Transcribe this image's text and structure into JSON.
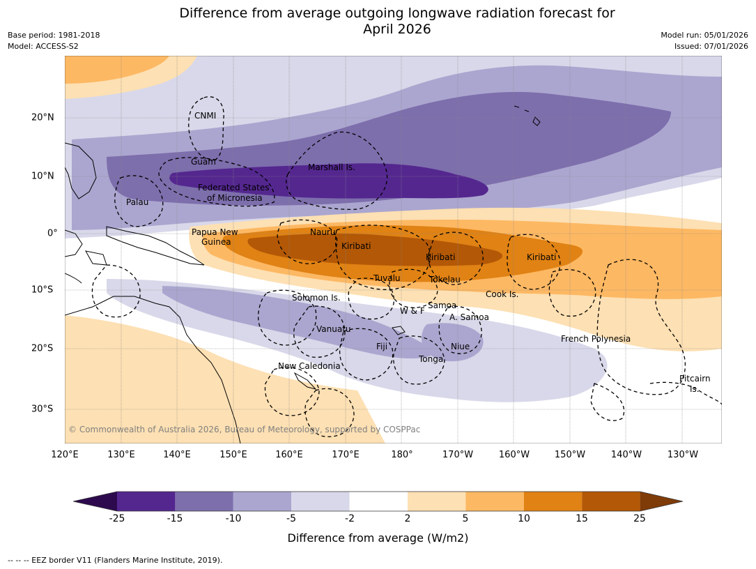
{
  "title": {
    "line1": "Difference from average outgoing longwave radiation forecast for",
    "line2": "April 2026"
  },
  "meta": {
    "base_period": "Base period: 1981-2018",
    "model": "Model: ACCESS-S2",
    "model_run": "Model run: 05/01/2026",
    "issued": "Issued: 07/01/2026"
  },
  "longitude_labels": [
    "120°E",
    "130°E",
    "140°E",
    "150°E",
    "160°E",
    "170°E",
    "180°",
    "170°W",
    "160°W",
    "150°W",
    "140°W",
    "130°W"
  ],
  "latitude_labels": [
    "20°N",
    "10°N",
    "0°",
    "10°S",
    "20°S",
    "30°S"
  ],
  "places": {
    "cnmi": "CNMI",
    "guam": "Guam",
    "marshall": "Marshall Is.",
    "fsm_line1": "Federated States",
    "fsm_line2": "of Micronesia",
    "palau": "Palau",
    "png_line1": "Papua New",
    "png_line2": "Guinea",
    "nauru": "Nauru",
    "kiribati_w": "Kiribati",
    "kiribati_c": "Kiribati",
    "kiribati_e": "Kiribati",
    "tuvalu": "Tuvalu",
    "tokelau": "Tokelau",
    "cook": "Cook Is.",
    "solomon": "Solomon Is.",
    "wf": "W & F",
    "samoa": "Samoa",
    "asamoa": "A. Samoa",
    "vanuatu": "Vanuatu",
    "fiji": "Fiji",
    "niue": "Niue",
    "tonga": "Tonga",
    "french_polynesia": "French Polynesia",
    "new_caledonia": "New Caledonia",
    "pitcairn_line1": "Pitcairn",
    "pitcairn_line2": "Is."
  },
  "copyright": "© Commonwealth of Australia 2026, Bureau of Meteorology, supported by COSPPac",
  "colorbar": {
    "ticks": [
      "-25",
      "-15",
      "-10",
      "-5",
      "-2",
      "2",
      "5",
      "10",
      "15",
      "25"
    ],
    "colors": [
      "#2d0a4e",
      "#54278f",
      "#7d6eac",
      "#aba6cf",
      "#d8d8ea",
      "#ffffff",
      "#fde0b3",
      "#fdb863",
      "#e08214",
      "#b35806",
      "#7f3b08"
    ],
    "title": "Difference from average (W/m2)"
  },
  "footnote": "--  --  -- EEZ border V11 (Flanders Marine Institute, 2019)."
}
